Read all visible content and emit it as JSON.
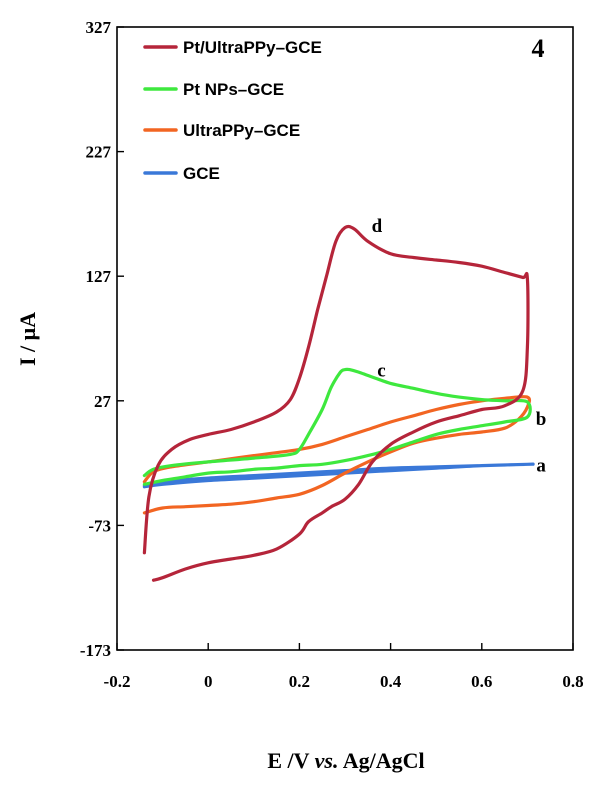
{
  "chart_data": {
    "type": "line",
    "panel_label": "4",
    "xlabel": "E /V vs. Ag/AgCl",
    "xlabel_parts": [
      "E /V ",
      "vs.",
      " Ag/AgCl"
    ],
    "ylabel": "I / μA",
    "xlim": [
      -0.2,
      0.8
    ],
    "ylim": [
      -173,
      327
    ],
    "x_ticks": [
      -0.2,
      0,
      0.2,
      0.4,
      0.6,
      0.8
    ],
    "x_tick_labels": [
      "-0.2",
      "0",
      "0.2",
      "0.4",
      "0.6",
      "0.8"
    ],
    "y_ticks": [
      -173,
      -73,
      27,
      127,
      227,
      327
    ],
    "y_tick_labels": [
      "-173",
      "-73",
      "27",
      "127",
      "227",
      "327"
    ],
    "grid": false,
    "legend_position": "top-left",
    "series": [
      {
        "name": "Pt/UltraPPy–GCE",
        "label": "d",
        "color": "#b5253a",
        "x": [
          -0.14,
          -0.13,
          -0.11,
          -0.08,
          -0.04,
          0.0,
          0.05,
          0.1,
          0.15,
          0.18,
          0.2,
          0.22,
          0.24,
          0.26,
          0.28,
          0.3,
          0.32,
          0.35,
          0.4,
          0.45,
          0.5,
          0.55,
          0.6,
          0.65,
          0.69,
          0.7,
          0.7,
          0.69,
          0.65,
          0.6,
          0.55,
          0.5,
          0.45,
          0.4,
          0.36,
          0.33,
          0.3,
          0.27,
          0.25,
          0.22,
          0.2,
          0.15,
          0.1,
          0.05,
          0.0,
          -0.05,
          -0.1,
          -0.12
        ],
        "y": [
          -95,
          -50,
          -25,
          -12,
          -4,
          0,
          4,
          10,
          18,
          28,
          45,
          70,
          100,
          128,
          155,
          166,
          165,
          155,
          145,
          142,
          140,
          138,
          135,
          130,
          126,
          125,
          70,
          35,
          23,
          20,
          15,
          10,
          2,
          -8,
          -22,
          -40,
          -52,
          -58,
          -63,
          -70,
          -80,
          -92,
          -97,
          -100,
          -103,
          -108,
          -115,
          -117
        ]
      },
      {
        "name": "Pt NPs–GCE",
        "label": "c",
        "color": "#3ee83e",
        "x": [
          -0.14,
          -0.12,
          -0.08,
          0.0,
          0.1,
          0.18,
          0.2,
          0.22,
          0.25,
          0.27,
          0.29,
          0.3,
          0.31,
          0.33,
          0.36,
          0.4,
          0.45,
          0.5,
          0.55,
          0.6,
          0.65,
          0.7,
          0.7,
          0.65,
          0.6,
          0.55,
          0.5,
          0.45,
          0.4,
          0.35,
          0.3,
          0.25,
          0.2,
          0.15,
          0.1,
          0.05,
          0.0,
          -0.05,
          -0.1,
          -0.14
        ],
        "y": [
          -33,
          -28,
          -25,
          -22,
          -19,
          -16,
          -12,
          0,
          20,
          38,
          50,
          52,
          52,
          50,
          46,
          41,
          37,
          33,
          30,
          28,
          27,
          26,
          14,
          10,
          7,
          4,
          0,
          -6,
          -12,
          -17,
          -21,
          -24,
          -25,
          -27,
          -28,
          -30,
          -31,
          -34,
          -37,
          -40
        ]
      },
      {
        "name": "UltraPPy–GCE",
        "label": "b",
        "color": "#f26522",
        "x": [
          -0.14,
          -0.12,
          -0.08,
          0.0,
          0.1,
          0.2,
          0.25,
          0.3,
          0.35,
          0.4,
          0.45,
          0.5,
          0.55,
          0.6,
          0.65,
          0.7,
          0.7,
          0.68,
          0.65,
          0.6,
          0.55,
          0.5,
          0.45,
          0.4,
          0.35,
          0.3,
          0.25,
          0.2,
          0.15,
          0.1,
          0.05,
          0.0,
          -0.05,
          -0.1,
          -0.14
        ],
        "y": [
          -38,
          -30,
          -26,
          -22,
          -17,
          -12,
          -8,
          -2,
          4,
          10,
          15,
          20,
          24,
          27,
          29,
          30,
          22,
          12,
          5,
          2,
          0,
          -3,
          -7,
          -14,
          -22,
          -31,
          -41,
          -48,
          -51,
          -54,
          -56,
          -57,
          -58,
          -59,
          -63
        ]
      },
      {
        "name": "GCE",
        "label": "a",
        "color": "#3a78d8",
        "x": [
          -0.14,
          -0.1,
          0.0,
          0.1,
          0.2,
          0.3,
          0.4,
          0.5,
          0.6,
          0.7,
          0.7,
          0.6,
          0.5,
          0.4,
          0.3,
          0.2,
          0.1,
          0.0,
          -0.1,
          -0.14
        ],
        "y": [
          -41,
          -38,
          -35,
          -33,
          -31,
          -29,
          -27,
          -26,
          -25,
          -24,
          -24,
          -25,
          -27,
          -29,
          -31,
          -33,
          -35,
          -37,
          -40,
          -42
        ]
      }
    ]
  }
}
